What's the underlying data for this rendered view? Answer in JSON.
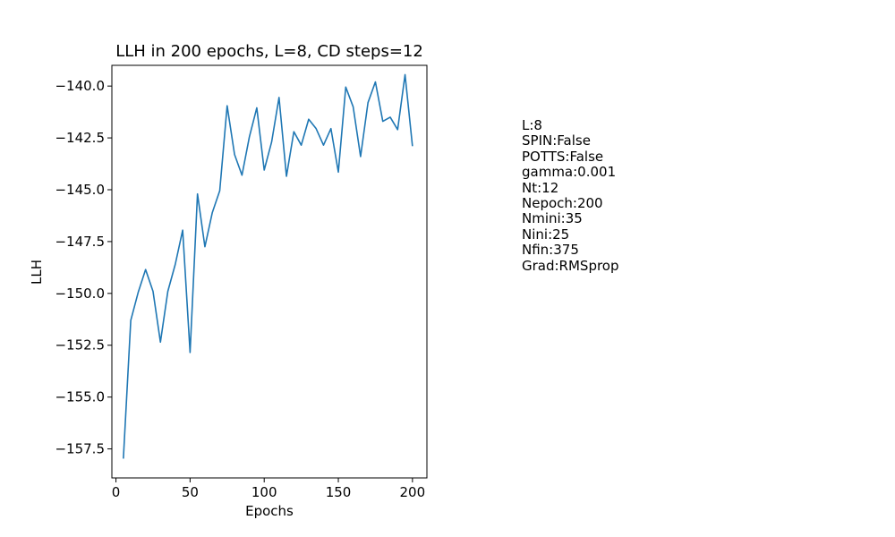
{
  "chart_data": {
    "type": "line",
    "title": "LLH in 200 epochs, L=8, CD steps=12",
    "xlabel": "Epochs",
    "ylabel": "LLH",
    "xlim": [
      -2.75,
      209.75
    ],
    "ylim": [
      -158.9,
      -139.0
    ],
    "xticks": [
      0,
      50,
      100,
      150,
      200
    ],
    "xtick_labels": [
      "0",
      "50",
      "100",
      "150",
      "200"
    ],
    "yticks": [
      -157.5,
      -155.0,
      -152.5,
      -150.0,
      -147.5,
      -145.0,
      -142.5,
      -140.0
    ],
    "ytick_labels": [
      "−157.5",
      "−155.0",
      "−152.5",
      "−150.0",
      "−147.5",
      "−145.0",
      "−142.5",
      "−140.0"
    ],
    "grid": false,
    "line_color": "#1f77b4",
    "series": [
      {
        "x": [
          5,
          10,
          15,
          20,
          25,
          30,
          35,
          40,
          45,
          50,
          55,
          60,
          65,
          70,
          75,
          80,
          85,
          90,
          95,
          100,
          105,
          110,
          115,
          120,
          125,
          130,
          135,
          140,
          145,
          150,
          155,
          160,
          165,
          170,
          175,
          180,
          185,
          190,
          195,
          200
        ],
        "values": [
          -157.97,
          -151.3,
          -149.95,
          -148.85,
          -149.9,
          -152.35,
          -149.9,
          -148.6,
          -146.95,
          -152.85,
          -145.2,
          -147.75,
          -146.1,
          -145.05,
          -140.95,
          -143.3,
          -144.3,
          -142.45,
          -141.05,
          -144.05,
          -142.7,
          -140.55,
          -144.35,
          -142.2,
          -142.85,
          -141.6,
          -142.05,
          -142.85,
          -142.05,
          -144.15,
          -140.05,
          -141.0,
          -143.4,
          -140.8,
          -139.8,
          -141.7,
          -141.5,
          -142.1,
          -139.45,
          -142.9
        ]
      }
    ]
  },
  "params": [
    "L:8",
    "SPIN:False",
    "POTTS:False",
    "gamma:0.001",
    "Nt:12",
    "Nepoch:200",
    "Nmini:35",
    "Nini:25",
    "Nfin:375",
    "Grad:RMSprop"
  ]
}
